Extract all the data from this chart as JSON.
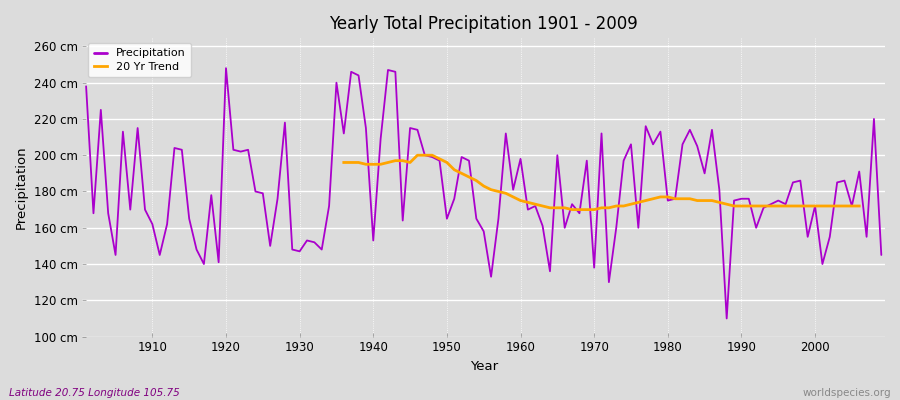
{
  "title": "Yearly Total Precipitation 1901 - 2009",
  "xlabel": "Year",
  "ylabel": "Precipitation",
  "subtitle_left": "Latitude 20.75 Longitude 105.75",
  "subtitle_right": "worldspecies.org",
  "ylim": [
    100,
    265
  ],
  "yticks": [
    100,
    120,
    140,
    160,
    180,
    200,
    220,
    240,
    260
  ],
  "ytick_labels": [
    "100 cm",
    "120 cm",
    "140 cm",
    "160 cm",
    "180 cm",
    "200 cm",
    "220 cm",
    "240 cm",
    "260 cm"
  ],
  "xlim": [
    1900.5,
    2009.5
  ],
  "precip_color": "#AA00CC",
  "trend_color": "#FFA500",
  "bg_color": "#dcdcdc",
  "grid_color": "#ffffff",
  "years": [
    1901,
    1902,
    1903,
    1904,
    1905,
    1906,
    1907,
    1908,
    1909,
    1910,
    1911,
    1912,
    1913,
    1914,
    1915,
    1916,
    1917,
    1918,
    1919,
    1920,
    1921,
    1922,
    1923,
    1924,
    1925,
    1926,
    1927,
    1928,
    1929,
    1930,
    1931,
    1932,
    1933,
    1934,
    1935,
    1936,
    1937,
    1938,
    1939,
    1940,
    1941,
    1942,
    1943,
    1944,
    1945,
    1946,
    1947,
    1948,
    1949,
    1950,
    1951,
    1952,
    1953,
    1954,
    1955,
    1956,
    1957,
    1958,
    1959,
    1960,
    1961,
    1962,
    1963,
    1964,
    1965,
    1966,
    1967,
    1968,
    1969,
    1970,
    1971,
    1972,
    1973,
    1974,
    1975,
    1976,
    1977,
    1978,
    1979,
    1980,
    1981,
    1982,
    1983,
    1984,
    1985,
    1986,
    1987,
    1988,
    1989,
    1990,
    1991,
    1992,
    1993,
    1994,
    1995,
    1996,
    1997,
    1998,
    1999,
    2000,
    2001,
    2002,
    2003,
    2004,
    2005,
    2006,
    2007,
    2008,
    2009
  ],
  "precip": [
    238,
    168,
    225,
    168,
    145,
    213,
    170,
    215,
    170,
    162,
    145,
    162,
    204,
    203,
    165,
    148,
    140,
    178,
    141,
    248,
    203,
    202,
    203,
    180,
    179,
    150,
    176,
    218,
    148,
    147,
    153,
    152,
    148,
    172,
    240,
    212,
    246,
    244,
    215,
    153,
    209,
    247,
    246,
    164,
    215,
    214,
    200,
    199,
    197,
    165,
    176,
    199,
    197,
    165,
    158,
    133,
    165,
    212,
    181,
    198,
    170,
    172,
    161,
    136,
    200,
    160,
    173,
    168,
    197,
    138,
    212,
    130,
    160,
    197,
    206,
    160,
    216,
    206,
    213,
    175,
    176,
    206,
    214,
    205,
    190,
    214,
    181,
    110,
    175,
    176,
    176,
    160,
    171,
    173,
    175,
    173,
    185,
    186,
    155,
    172,
    140,
    155,
    185,
    186,
    172,
    191,
    155,
    220,
    145
  ],
  "trend_years": [
    1936,
    1937,
    1938,
    1939,
    1940,
    1941,
    1942,
    1943,
    1944,
    1945,
    1946,
    1947,
    1948,
    1949,
    1950,
    1951,
    1952,
    1953,
    1954,
    1955,
    1956,
    1957,
    1958,
    1959,
    1960,
    1961,
    1962,
    1963,
    1964,
    1965,
    1966,
    1967,
    1968,
    1969,
    1970,
    1971,
    1972,
    1973,
    1974,
    1975,
    1976,
    1977,
    1978,
    1979,
    1980,
    1981,
    1982,
    1983,
    1984,
    1985,
    1986,
    1987,
    1988,
    1989,
    1990,
    1991,
    1992,
    1993,
    1994,
    1995,
    1996,
    1997,
    1998,
    1999,
    2000,
    2001,
    2002,
    2003,
    2004,
    2005,
    2006
  ],
  "trend_vals": [
    196,
    196,
    196,
    195,
    195,
    195,
    196,
    197,
    197,
    196,
    200,
    200,
    200,
    198,
    196,
    192,
    190,
    188,
    186,
    183,
    181,
    180,
    179,
    177,
    175,
    174,
    173,
    172,
    171,
    171,
    171,
    170,
    170,
    170,
    170,
    171,
    171,
    172,
    172,
    173,
    174,
    175,
    176,
    177,
    177,
    176,
    176,
    176,
    175,
    175,
    175,
    174,
    173,
    172,
    172,
    172,
    172,
    172,
    172,
    172,
    172,
    172,
    172,
    172,
    172,
    172,
    172,
    172,
    172,
    172,
    172
  ]
}
